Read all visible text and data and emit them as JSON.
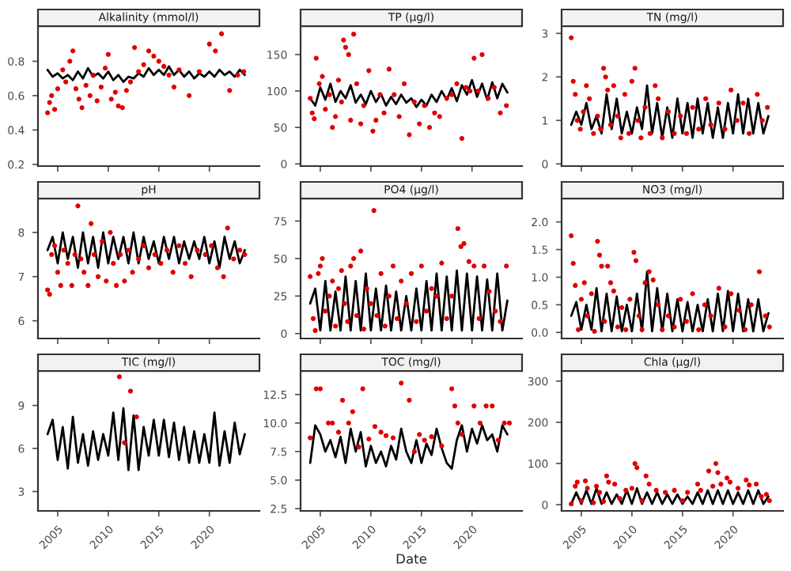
{
  "chart_data": [
    {
      "type": "line",
      "title": "Alkalinity (mmol/l)",
      "xlim": [
        2003.05,
        2024.95
      ],
      "xticks": [
        2005,
        2010,
        2015,
        2020
      ],
      "ylim": [
        0.19,
        1.0
      ],
      "yticks": [
        0.2,
        0.4,
        0.6,
        0.8
      ],
      "tick_labels": "y",
      "series": [
        {
          "type": "line",
          "color": "#000000",
          "x": [
            2004.0,
            2004.5,
            2005.0,
            2005.5,
            2006.0,
            2006.5,
            2007.0,
            2007.5,
            2008.0,
            2008.5,
            2009.0,
            2009.5,
            2010.0,
            2010.5,
            2011.0,
            2011.5,
            2012.0,
            2012.5,
            2013.0,
            2013.5,
            2014.0,
            2014.5,
            2015.0,
            2015.5,
            2016.0,
            2016.5,
            2017.0,
            2017.5,
            2018.0,
            2018.5,
            2019.0,
            2019.5,
            2020.0,
            2020.5,
            2021.0,
            2021.5,
            2022.0,
            2022.5,
            2023.0,
            2023.5
          ],
          "values": [
            0.75,
            0.71,
            0.73,
            0.7,
            0.72,
            0.69,
            0.74,
            0.7,
            0.76,
            0.71,
            0.73,
            0.7,
            0.74,
            0.69,
            0.72,
            0.68,
            0.71,
            0.7,
            0.73,
            0.71,
            0.76,
            0.72,
            0.75,
            0.72,
            0.77,
            0.72,
            0.75,
            0.71,
            0.74,
            0.7,
            0.73,
            0.71,
            0.74,
            0.71,
            0.75,
            0.72,
            0.74,
            0.71,
            0.75,
            0.72
          ]
        },
        {
          "type": "scatter",
          "color": "#e00000",
          "marker": "circle",
          "x": [
            2004.0,
            2004.2,
            2004.4,
            2004.7,
            2005.0,
            2005.5,
            2005.8,
            2006.2,
            2006.5,
            2006.8,
            2007.1,
            2007.4,
            2007.8,
            2008.2,
            2008.5,
            2008.9,
            2009.3,
            2009.7,
            2010.0,
            2010.3,
            2010.7,
            2011.0,
            2011.4,
            2011.8,
            2012.2,
            2012.6,
            2013.0,
            2013.5,
            2014.0,
            2014.5,
            2015.0,
            2015.5,
            2016.0,
            2016.5,
            2017.0,
            2018.0,
            2019.0,
            2020.0,
            2020.6,
            2021.2,
            2022.0,
            2022.8,
            2023.4
          ],
          "values": [
            0.5,
            0.56,
            0.6,
            0.52,
            0.64,
            0.75,
            0.68,
            0.8,
            0.86,
            0.64,
            0.58,
            0.53,
            0.66,
            0.6,
            0.72,
            0.57,
            0.65,
            0.76,
            0.84,
            0.58,
            0.62,
            0.54,
            0.53,
            0.63,
            0.68,
            0.88,
            0.74,
            0.78,
            0.86,
            0.83,
            0.8,
            0.77,
            0.72,
            0.65,
            0.75,
            0.6,
            0.74,
            0.9,
            0.86,
            0.96,
            0.63,
            0.72,
            0.74
          ]
        }
      ]
    },
    {
      "type": "line",
      "title": "TP (µg/l)",
      "xlim": [
        2003.05,
        2024.95
      ],
      "xticks": [
        2005,
        2010,
        2015,
        2020
      ],
      "ylim": [
        -3,
        188
      ],
      "yticks": [
        0,
        50,
        100,
        150
      ],
      "tick_labels": "y",
      "series": [
        {
          "type": "line",
          "color": "#000000",
          "x": [
            2004.0,
            2004.5,
            2005.0,
            2005.5,
            2006.0,
            2006.5,
            2007.0,
            2007.5,
            2008.0,
            2008.5,
            2009.0,
            2009.5,
            2010.0,
            2010.5,
            2011.0,
            2011.5,
            2012.0,
            2012.5,
            2013.0,
            2013.5,
            2014.0,
            2014.5,
            2015.0,
            2015.5,
            2016.0,
            2016.5,
            2017.0,
            2017.5,
            2018.0,
            2018.5,
            2019.0,
            2019.5,
            2020.0,
            2020.5,
            2021.0,
            2021.5,
            2022.0,
            2022.5,
            2023.0,
            2023.5
          ],
          "values": [
            90,
            80,
            105,
            88,
            110,
            85,
            100,
            90,
            108,
            84,
            95,
            82,
            100,
            85,
            96,
            80,
            92,
            82,
            95,
            84,
            90,
            78,
            88,
            80,
            95,
            85,
            100,
            88,
            104,
            86,
            108,
            95,
            115,
            92,
            110,
            88,
            112,
            90,
            110,
            98
          ]
        },
        {
          "type": "scatter",
          "color": "#e00000",
          "marker": "circle",
          "x": [
            2004.0,
            2004.2,
            2004.4,
            2004.6,
            2004.9,
            2005.2,
            2005.5,
            2005.9,
            2006.2,
            2006.5,
            2006.8,
            2007.1,
            2007.3,
            2007.5,
            2007.8,
            2008.0,
            2008.3,
            2008.6,
            2009.0,
            2009.3,
            2009.8,
            2010.2,
            2010.5,
            2010.9,
            2011.3,
            2011.8,
            2012.3,
            2012.8,
            2013.3,
            2013.8,
            2014.3,
            2014.8,
            2015.3,
            2015.8,
            2016.3,
            2016.8,
            2017.5,
            2018.0,
            2018.5,
            2019.0,
            2019.4,
            2019.8,
            2020.2,
            2020.6,
            2021.0,
            2021.6,
            2022.2,
            2022.8,
            2023.4
          ],
          "values": [
            90,
            70,
            62,
            145,
            110,
            120,
            75,
            95,
            50,
            65,
            115,
            85,
            170,
            160,
            150,
            60,
            178,
            110,
            55,
            80,
            128,
            45,
            60,
            95,
            70,
            130,
            95,
            65,
            110,
            40,
            85,
            55,
            80,
            50,
            70,
            65,
            90,
            95,
            110,
            35,
            105,
            100,
            145,
            100,
            150,
            90,
            105,
            70,
            80
          ]
        }
      ]
    },
    {
      "type": "line",
      "title": "TN (mg/l)",
      "xlim": [
        2003.05,
        2024.95
      ],
      "xticks": [
        2005,
        2010,
        2015,
        2020
      ],
      "ylim": [
        -0.05,
        3.15
      ],
      "yticks": [
        0,
        1,
        2,
        3
      ],
      "tick_labels": "y",
      "series": [
        {
          "type": "line",
          "color": "#000000",
          "x": [
            2004.0,
            2004.5,
            2005.0,
            2005.5,
            2006.0,
            2006.5,
            2007.0,
            2007.5,
            2008.0,
            2008.5,
            2009.0,
            2009.5,
            2010.0,
            2010.5,
            2011.0,
            2011.5,
            2012.0,
            2012.5,
            2013.0,
            2013.5,
            2014.0,
            2014.5,
            2015.0,
            2015.5,
            2016.0,
            2016.5,
            2017.0,
            2017.5,
            2018.0,
            2018.5,
            2019.0,
            2019.5,
            2020.0,
            2020.5,
            2021.0,
            2021.5,
            2022.0,
            2022.5,
            2023.0,
            2023.5
          ],
          "values": [
            0.9,
            1.2,
            0.9,
            1.4,
            0.8,
            1.1,
            0.7,
            1.6,
            0.8,
            1.5,
            0.7,
            1.2,
            0.7,
            1.3,
            0.8,
            1.8,
            0.7,
            1.4,
            0.6,
            1.3,
            0.6,
            1.5,
            0.7,
            1.4,
            0.6,
            1.5,
            0.7,
            1.4,
            0.6,
            1.3,
            0.6,
            1.4,
            0.7,
            1.6,
            0.7,
            1.5,
            0.7,
            1.4,
            0.7,
            1.1
          ]
        },
        {
          "type": "scatter",
          "color": "#e00000",
          "marker": "circle",
          "x": [
            2004.0,
            2004.2,
            2004.4,
            2004.6,
            2004.9,
            2005.2,
            2005.5,
            2005.8,
            2006.2,
            2006.6,
            2006.9,
            2007.2,
            2007.4,
            2007.6,
            2007.9,
            2008.2,
            2008.6,
            2008.9,
            2009.3,
            2009.7,
            2010.0,
            2010.3,
            2010.6,
            2010.9,
            2011.3,
            2011.8,
            2012.3,
            2012.6,
            2013.0,
            2013.6,
            2014.2,
            2014.8,
            2015.4,
            2016.0,
            2016.6,
            2017.3,
            2017.8,
            2018.6,
            2019.2,
            2019.8,
            2020.4,
            2021.0,
            2021.6,
            2022.4,
            2022.9,
            2023.4
          ],
          "values": [
            2.9,
            1.9,
            1.6,
            1.0,
            0.8,
            1.2,
            1.8,
            1.5,
            0.7,
            1.1,
            0.8,
            2.2,
            2.0,
            1.7,
            0.9,
            1.8,
            1.1,
            0.6,
            1.6,
            0.7,
            1.9,
            2.2,
            1.0,
            0.6,
            1.3,
            0.7,
            1.8,
            1.5,
            0.6,
            1.2,
            0.7,
            1.1,
            0.7,
            1.3,
            0.8,
            1.5,
            0.9,
            1.4,
            0.8,
            1.7,
            1.0,
            1.4,
            0.7,
            1.6,
            1.0,
            1.3
          ]
        }
      ]
    },
    {
      "type": "line",
      "title": "pH",
      "xlim": [
        2003.05,
        2024.95
      ],
      "xticks": [
        2005,
        2010,
        2015,
        2020
      ],
      "ylim": [
        5.6,
        8.75
      ],
      "yticks": [
        6,
        7,
        8
      ],
      "tick_labels": "y",
      "series": [
        {
          "type": "line",
          "color": "#000000",
          "x": [
            2004.0,
            2004.5,
            2005.0,
            2005.5,
            2006.0,
            2006.5,
            2007.0,
            2007.5,
            2008.0,
            2008.5,
            2009.0,
            2009.5,
            2010.0,
            2010.5,
            2011.0,
            2011.5,
            2012.0,
            2012.5,
            2013.0,
            2013.5,
            2014.0,
            2014.5,
            2015.0,
            2015.5,
            2016.0,
            2016.5,
            2017.0,
            2017.5,
            2018.0,
            2018.5,
            2019.0,
            2019.5,
            2020.0,
            2020.5,
            2021.0,
            2021.5,
            2022.0,
            2022.5,
            2023.0,
            2023.5
          ],
          "values": [
            7.6,
            7.9,
            7.3,
            8.0,
            7.4,
            7.9,
            7.2,
            8.0,
            7.3,
            7.9,
            7.2,
            8.0,
            7.3,
            7.9,
            7.4,
            7.9,
            7.3,
            8.0,
            7.3,
            7.9,
            7.4,
            7.8,
            7.3,
            7.9,
            7.4,
            7.9,
            7.3,
            7.8,
            7.4,
            7.8,
            7.4,
            7.9,
            7.3,
            7.8,
            7.2,
            7.9,
            7.4,
            7.8,
            7.3,
            7.6
          ]
        },
        {
          "type": "scatter",
          "color": "#e00000",
          "marker": "circle",
          "x": [
            2004.0,
            2004.2,
            2004.4,
            2004.7,
            2005.0,
            2005.3,
            2005.6,
            2006.0,
            2006.4,
            2006.7,
            2007.0,
            2007.3,
            2007.6,
            2008.0,
            2008.3,
            2008.6,
            2009.0,
            2009.4,
            2009.8,
            2010.2,
            2010.5,
            2010.8,
            2011.2,
            2011.6,
            2012.0,
            2012.4,
            2013.0,
            2013.5,
            2014.0,
            2014.6,
            2015.2,
            2015.8,
            2016.4,
            2017.0,
            2017.6,
            2018.2,
            2018.8,
            2019.6,
            2020.2,
            2020.8,
            2021.4,
            2021.8,
            2022.4,
            2023.0,
            2023.5
          ],
          "values": [
            6.7,
            6.6,
            7.5,
            7.7,
            7.1,
            6.8,
            7.6,
            7.3,
            6.8,
            7.5,
            8.6,
            7.4,
            7.1,
            6.8,
            8.2,
            7.5,
            7.0,
            7.8,
            6.9,
            8.0,
            7.3,
            6.8,
            7.5,
            6.9,
            7.6,
            7.1,
            7.4,
            7.7,
            7.2,
            7.5,
            7.3,
            7.6,
            7.1,
            7.7,
            7.3,
            7.0,
            7.6,
            7.5,
            7.7,
            7.2,
            7.0,
            8.1,
            7.4,
            7.6,
            7.5
          ]
        }
      ]
    },
    {
      "type": "line",
      "title": "PO4 (µg/l)",
      "xlim": [
        2003.05,
        2024.95
      ],
      "xticks": [
        2005,
        2010,
        2015,
        2020
      ],
      "ylim": [
        -3.3,
        89.5
      ],
      "yticks": [
        0,
        25,
        50,
        75
      ],
      "tick_labels": "y",
      "series": [
        {
          "type": "line",
          "color": "#000000",
          "x": [
            2004.0,
            2004.5,
            2005.0,
            2005.5,
            2006.0,
            2006.5,
            2007.0,
            2007.5,
            2008.0,
            2008.5,
            2009.0,
            2009.5,
            2010.0,
            2010.5,
            2011.0,
            2011.5,
            2012.0,
            2012.5,
            2013.0,
            2013.5,
            2014.0,
            2014.5,
            2015.0,
            2015.5,
            2016.0,
            2016.5,
            2017.0,
            2017.5,
            2018.0,
            2018.5,
            2019.0,
            2019.5,
            2020.0,
            2020.5,
            2021.0,
            2021.5,
            2022.0,
            2022.5,
            2023.0,
            2023.5
          ],
          "values": [
            20,
            30,
            2,
            35,
            2,
            28,
            2,
            38,
            2,
            35,
            2,
            40,
            2,
            30,
            2,
            32,
            2,
            28,
            2,
            25,
            2,
            30,
            2,
            35,
            2,
            40,
            2,
            38,
            2,
            42,
            2,
            40,
            2,
            38,
            2,
            36,
            2,
            40,
            2,
            22
          ]
        },
        {
          "type": "scatter",
          "color": "#e00000",
          "marker": "circle",
          "x": [
            2004.0,
            2004.3,
            2004.5,
            2004.8,
            2005.0,
            2005.2,
            2005.5,
            2005.9,
            2006.2,
            2006.5,
            2006.8,
            2007.1,
            2007.4,
            2007.7,
            2008.0,
            2008.3,
            2008.6,
            2009.0,
            2009.3,
            2009.6,
            2010.0,
            2010.3,
            2010.6,
            2011.0,
            2011.4,
            2011.8,
            2012.2,
            2012.6,
            2013.0,
            2013.5,
            2014.0,
            2014.5,
            2015.0,
            2015.5,
            2016.0,
            2016.5,
            2017.0,
            2017.5,
            2018.0,
            2018.6,
            2018.9,
            2019.2,
            2019.7,
            2020.2,
            2020.7,
            2021.2,
            2021.7,
            2022.3,
            2022.8,
            2023.4
          ],
          "values": [
            38,
            10,
            2,
            40,
            45,
            50,
            15,
            25,
            35,
            5,
            30,
            42,
            20,
            8,
            45,
            50,
            12,
            55,
            3,
            30,
            20,
            82,
            12,
            40,
            5,
            25,
            45,
            10,
            35,
            20,
            40,
            8,
            45,
            15,
            30,
            25,
            47,
            10,
            25,
            70,
            58,
            60,
            48,
            45,
            10,
            45,
            28,
            15,
            8,
            45
          ]
        }
      ]
    },
    {
      "type": "line",
      "title": "NO3 (mg/l)",
      "xlim": [
        2003.05,
        2024.95
      ],
      "xticks": [
        2005,
        2010,
        2015,
        2020
      ],
      "ylim": [
        -0.11,
        2.41
      ],
      "yticks": [
        {
          "value": 0,
          "label": "0.0"
        },
        0.5,
        {
          "value": 1,
          "label": "1.0"
        },
        1.5,
        {
          "value": 2,
          "label": "2.0"
        }
      ],
      "tick_labels": "y",
      "series": [
        {
          "type": "line",
          "color": "#000000",
          "x": [
            2004.0,
            2004.5,
            2005.0,
            2005.5,
            2006.0,
            2006.5,
            2007.0,
            2007.5,
            2008.0,
            2008.5,
            2009.0,
            2009.5,
            2010.0,
            2010.5,
            2011.0,
            2011.5,
            2012.0,
            2012.5,
            2013.0,
            2013.5,
            2014.0,
            2014.5,
            2015.0,
            2015.5,
            2016.0,
            2016.5,
            2017.0,
            2017.5,
            2018.0,
            2018.5,
            2019.0,
            2019.5,
            2020.0,
            2020.5,
            2021.0,
            2021.5,
            2022.0,
            2022.5,
            2023.0,
            2023.5
          ],
          "values": [
            0.3,
            0.55,
            0.05,
            0.5,
            0.05,
            0.8,
            0.02,
            0.7,
            0.02,
            0.65,
            0.02,
            0.5,
            0.02,
            0.7,
            0.02,
            1.1,
            0.02,
            0.8,
            0.02,
            0.7,
            0.02,
            0.6,
            0.02,
            0.55,
            0.02,
            0.5,
            0.02,
            0.6,
            0.02,
            0.7,
            0.02,
            0.75,
            0.02,
            0.7,
            0.02,
            0.6,
            0.02,
            0.6,
            0.02,
            0.35
          ]
        },
        {
          "type": "scatter",
          "color": "#e00000",
          "marker": "circle",
          "x": [
            2004.0,
            2004.2,
            2004.4,
            2004.7,
            2005.0,
            2005.3,
            2005.6,
            2006.0,
            2006.3,
            2006.6,
            2006.8,
            2007.0,
            2007.3,
            2007.6,
            2007.9,
            2008.2,
            2008.6,
            2009.0,
            2009.4,
            2009.8,
            2010.2,
            2010.4,
            2010.7,
            2011.0,
            2011.3,
            2011.7,
            2012.1,
            2012.6,
            2013.0,
            2013.6,
            2014.2,
            2014.8,
            2015.4,
            2016.0,
            2016.6,
            2017.2,
            2017.8,
            2018.6,
            2019.2,
            2019.8,
            2020.6,
            2021.2,
            2021.8,
            2022.6,
            2023.2,
            2023.6
          ],
          "values": [
            1.75,
            1.25,
            0.85,
            0.05,
            0.6,
            0.9,
            0.3,
            0.7,
            0.02,
            1.65,
            1.4,
            1.2,
            0.2,
            1.2,
            0.9,
            0.75,
            0.1,
            0.45,
            0.05,
            0.6,
            1.45,
            1.3,
            0.3,
            0.05,
            0.9,
            1.1,
            0.95,
            0.5,
            0.05,
            0.3,
            0.1,
            0.6,
            0.2,
            0.7,
            0.05,
            0.5,
            0.3,
            0.8,
            0.1,
            0.7,
            0.4,
            0.05,
            0.5,
            1.1,
            0.3,
            0.1
          ]
        }
      ]
    },
    {
      "type": "line",
      "title": "TIC (mg/l)",
      "xlim": [
        2003.05,
        2024.95
      ],
      "xticks": [
        2005,
        2010,
        2015,
        2020
      ],
      "ylim": [
        1.65,
        11.35
      ],
      "yticks": [
        3,
        6,
        9
      ],
      "series": [
        {
          "type": "line",
          "color": "#000000",
          "x": [
            2004.0,
            2004.5,
            2005.0,
            2005.5,
            2006.0,
            2006.5,
            2007.0,
            2007.5,
            2008.0,
            2008.5,
            2009.0,
            2009.5,
            2010.0,
            2010.5,
            2011.0,
            2011.5,
            2012.0,
            2012.5,
            2013.0,
            2013.5,
            2014.0,
            2014.5,
            2015.0,
            2015.5,
            2016.0,
            2016.5,
            2017.0,
            2017.5,
            2018.0,
            2018.5,
            2019.0,
            2019.5,
            2020.0,
            2020.5,
            2021.0,
            2021.5,
            2022.0,
            2022.5,
            2023.0,
            2023.5
          ],
          "values": [
            7.0,
            8.0,
            5.2,
            7.5,
            4.6,
            8.2,
            5.0,
            7.0,
            4.8,
            7.2,
            5.2,
            7.0,
            5.5,
            8.5,
            5.2,
            8.8,
            4.5,
            8.3,
            4.5,
            7.5,
            5.5,
            8.0,
            5.5,
            8.0,
            5.4,
            7.8,
            5.2,
            7.5,
            5.0,
            7.2,
            5.0,
            7.0,
            5.0,
            8.5,
            4.8,
            7.2,
            5.0,
            7.8,
            5.6,
            7.0
          ]
        },
        {
          "type": "scatter",
          "color": "#e00000",
          "marker": "circle",
          "x": [
            2011.1,
            2011.6,
            2012.2,
            2012.8
          ],
          "values": [
            11.0,
            6.4,
            10.0,
            8.2
          ]
        }
      ]
    },
    {
      "type": "line",
      "title": "TOC (mg/l)",
      "xlabel": "Date",
      "xlim": [
        2003.05,
        2024.95
      ],
      "xticks": [
        2005,
        2010,
        2015,
        2020
      ],
      "ylim": [
        2.3,
        14.5
      ],
      "yticks": [
        2.5,
        {
          "value": 5,
          "label": "5.0"
        },
        7.5,
        {
          "value": 10,
          "label": "10.0"
        },
        12.5
      ],
      "series": [
        {
          "type": "line",
          "color": "#000000",
          "x": [
            2004.0,
            2004.5,
            2005.0,
            2005.5,
            2006.0,
            2006.5,
            2007.0,
            2007.5,
            2008.0,
            2008.5,
            2009.0,
            2009.5,
            2010.0,
            2010.5,
            2011.0,
            2011.5,
            2012.0,
            2012.5,
            2013.0,
            2013.5,
            2014.0,
            2014.5,
            2015.0,
            2015.5,
            2016.0,
            2016.5,
            2017.0,
            2017.5,
            2018.0,
            2018.5,
            2019.0,
            2019.5,
            2020.0,
            2020.5,
            2021.0,
            2021.5,
            2022.0,
            2022.5,
            2023.0,
            2023.5
          ],
          "values": [
            6.5,
            9.8,
            9.0,
            7.5,
            8.5,
            7.0,
            8.8,
            6.5,
            9.5,
            7.5,
            9.2,
            6.2,
            8.0,
            6.5,
            7.5,
            6.2,
            8.0,
            6.8,
            9.5,
            7.5,
            6.5,
            8.5,
            6.5,
            8.2,
            7.2,
            9.5,
            7.8,
            6.5,
            6.0,
            8.5,
            9.8,
            7.5,
            9.5,
            8.2,
            9.8,
            8.5,
            9.0,
            7.5,
            9.8,
            9.0
          ]
        },
        {
          "type": "scatter",
          "color": "#e00000",
          "marker": "circle",
          "x": [
            2004.0,
            2004.6,
            2005.0,
            2005.8,
            2006.2,
            2006.8,
            2007.2,
            2007.8,
            2008.2,
            2008.8,
            2009.2,
            2009.8,
            2010.4,
            2011.0,
            2011.5,
            2012.2,
            2013.0,
            2013.8,
            2014.3,
            2014.8,
            2015.3,
            2016.0,
            2017.0,
            2018.0,
            2018.3,
            2018.6,
            2019.0,
            2020.2,
            2020.8,
            2021.4,
            2022.0,
            2022.6,
            2023.2,
            2023.7
          ],
          "values": [
            8.7,
            13.0,
            13.0,
            10.0,
            10.0,
            9.2,
            12.0,
            10.0,
            11.0,
            7.9,
            13.0,
            8.6,
            9.7,
            9.2,
            8.9,
            8.7,
            13.5,
            12.0,
            7.5,
            9.0,
            8.5,
            8.8,
            8.0,
            13.0,
            11.5,
            10.0,
            9.0,
            11.5,
            10.0,
            11.5,
            11.5,
            8.5,
            10.0,
            10.0
          ]
        }
      ]
    },
    {
      "type": "line",
      "title": "Chla (µg/l)",
      "xlim": [
        2003.05,
        2024.95
      ],
      "xticks": [
        2005,
        2010,
        2015,
        2020
      ],
      "ylim": [
        -15,
        323
      ],
      "yticks": [
        0,
        100,
        200,
        300
      ],
      "series": [
        {
          "type": "line",
          "color": "#000000",
          "x": [
            2004.0,
            2004.5,
            2005.0,
            2005.5,
            2006.0,
            2006.5,
            2007.0,
            2007.5,
            2008.0,
            2008.5,
            2009.0,
            2009.5,
            2010.0,
            2010.5,
            2011.0,
            2011.5,
            2012.0,
            2012.5,
            2013.0,
            2013.5,
            2014.0,
            2014.5,
            2015.0,
            2015.5,
            2016.0,
            2016.5,
            2017.0,
            2017.5,
            2018.0,
            2018.5,
            2019.0,
            2019.5,
            2020.0,
            2020.5,
            2021.0,
            2021.5,
            2022.0,
            2022.5,
            2023.0,
            2023.5
          ],
          "values": [
            2,
            30,
            2,
            35,
            2,
            40,
            2,
            30,
            2,
            25,
            2,
            35,
            2,
            40,
            2,
            30,
            2,
            30,
            2,
            25,
            2,
            25,
            2,
            20,
            2,
            30,
            2,
            35,
            2,
            35,
            2,
            35,
            2,
            30,
            2,
            35,
            2,
            35,
            2,
            20
          ]
        },
        {
          "type": "scatter",
          "color": "#e00000",
          "marker": "circle",
          "x": [
            2004.0,
            2004.4,
            2004.6,
            2005.0,
            2005.4,
            2005.6,
            2006.2,
            2006.5,
            2006.8,
            2007.2,
            2007.5,
            2007.7,
            2008.3,
            2008.8,
            2009.4,
            2010.0,
            2010.3,
            2010.5,
            2011.0,
            2011.4,
            2011.7,
            2012.4,
            2013.3,
            2014.2,
            2015.0,
            2015.5,
            2016.5,
            2016.8,
            2017.6,
            2018.0,
            2018.3,
            2018.5,
            2018.8,
            2019.4,
            2019.7,
            2020.5,
            2021.3,
            2021.6,
            2022.3,
            2022.8,
            2023.3,
            2023.6
          ],
          "values": [
            2,
            45,
            55,
            10,
            58,
            40,
            5,
            45,
            30,
            8,
            70,
            55,
            50,
            15,
            35,
            40,
            100,
            90,
            10,
            70,
            50,
            35,
            30,
            35,
            10,
            30,
            50,
            35,
            82,
            45,
            100,
            78,
            50,
            65,
            55,
            40,
            60,
            48,
            50,
            20,
            25,
            10
          ]
        }
      ]
    }
  ]
}
